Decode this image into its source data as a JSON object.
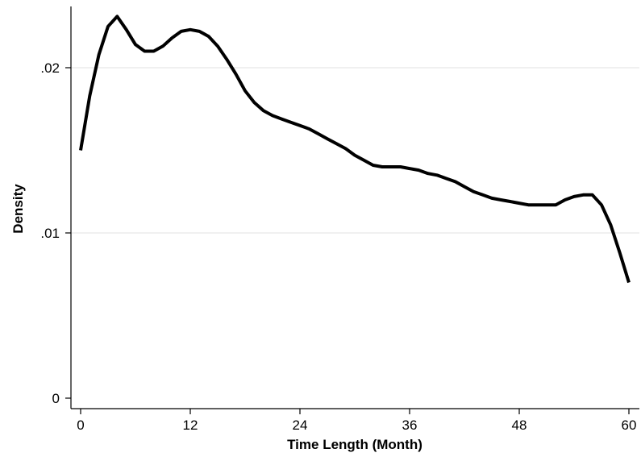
{
  "chart_data": {
    "type": "line",
    "title": "",
    "xlabel": "Time Length (Month)",
    "ylabel": "Density",
    "xlim": [
      0,
      60
    ],
    "ylim": [
      0,
      0.023
    ],
    "grid": true,
    "legend": "none",
    "x_ticks": [
      0,
      12,
      24,
      36,
      48,
      60
    ],
    "x_tick_labels": [
      "0",
      "12",
      "24",
      "36",
      "48",
      "60"
    ],
    "y_ticks": [
      0,
      0.01,
      0.02
    ],
    "y_tick_labels": [
      "0",
      ".01",
      ".02"
    ],
    "colors": {
      "line": "#000000",
      "grid": "#e6e6e6",
      "axis": "#000000"
    },
    "series": [
      {
        "x": [
          0,
          1,
          2,
          3,
          4,
          5,
          6,
          7,
          8,
          9,
          10,
          11,
          12,
          13,
          14,
          15,
          16,
          17,
          18,
          19,
          20,
          21,
          22,
          23,
          24,
          25,
          26,
          27,
          28,
          29,
          30,
          31,
          32,
          33,
          34,
          35,
          36,
          37,
          38,
          39,
          40,
          41,
          42,
          43,
          44,
          45,
          46,
          47,
          48,
          49,
          50,
          51,
          52,
          53,
          54,
          55,
          56,
          57,
          58,
          59,
          60
        ],
        "y": [
          0.015,
          0.0183,
          0.0208,
          0.0225,
          0.0231,
          0.0223,
          0.0214,
          0.021,
          0.021,
          0.0213,
          0.0218,
          0.0222,
          0.0223,
          0.0222,
          0.0219,
          0.0213,
          0.0205,
          0.0196,
          0.0186,
          0.0179,
          0.0174,
          0.0171,
          0.0169,
          0.0167,
          0.0165,
          0.0163,
          0.016,
          0.0157,
          0.0154,
          0.0151,
          0.0147,
          0.0144,
          0.0141,
          0.014,
          0.014,
          0.014,
          0.0139,
          0.0138,
          0.0136,
          0.0135,
          0.0133,
          0.0131,
          0.0128,
          0.0125,
          0.0123,
          0.0121,
          0.012,
          0.0119,
          0.0118,
          0.0117,
          0.0117,
          0.0117,
          0.0117,
          0.012,
          0.0122,
          0.0123,
          0.0123,
          0.0117,
          0.0105,
          0.0088,
          0.007
        ]
      }
    ]
  }
}
